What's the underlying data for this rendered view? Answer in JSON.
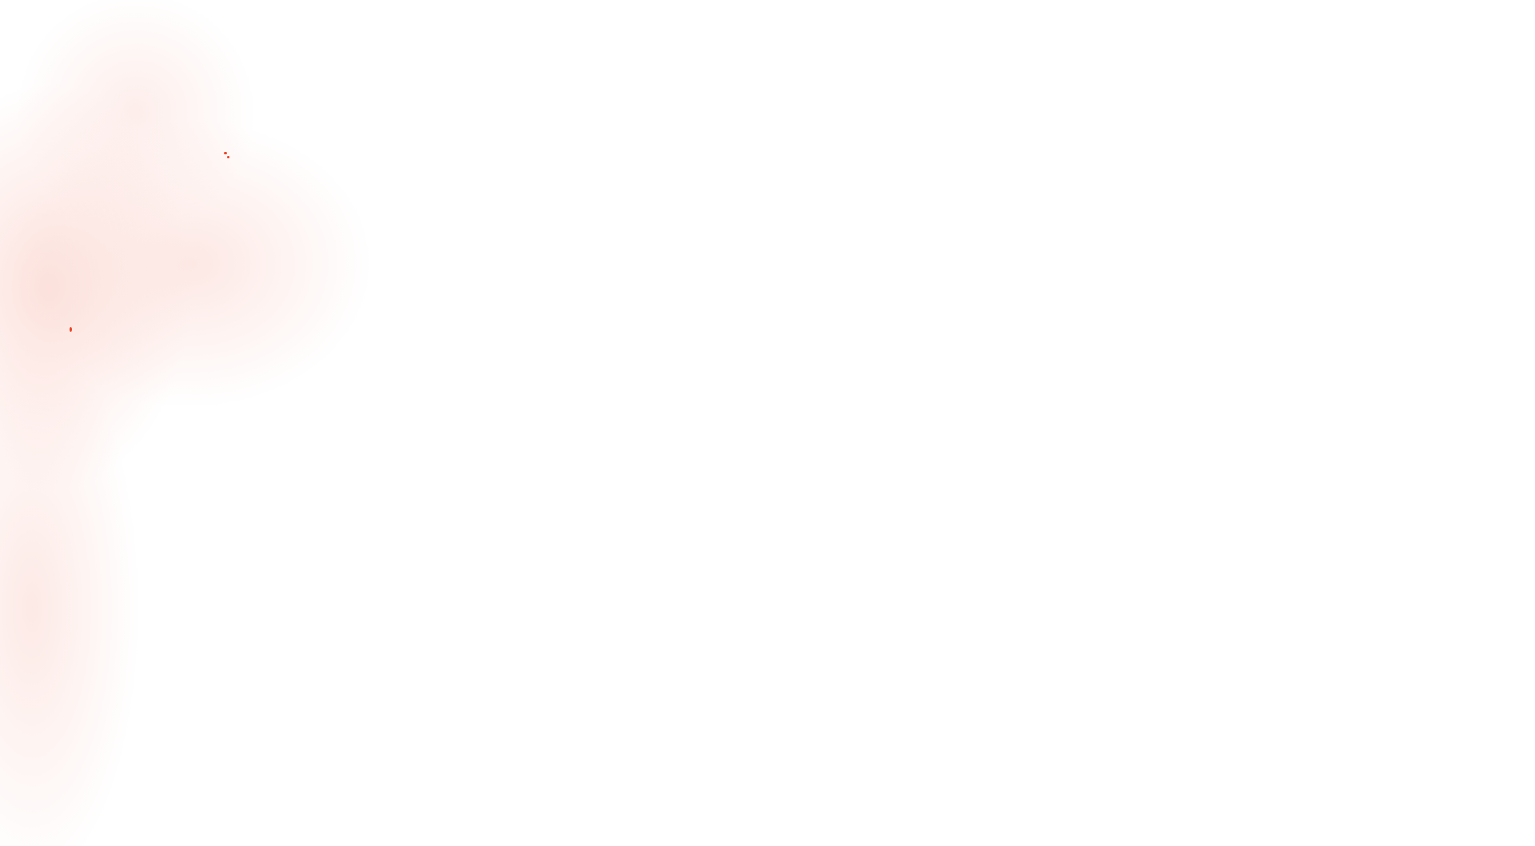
{
  "background": {
    "base_color": "#ffffff",
    "wash_color": "#fde4e0",
    "speck_color": "#f0401f"
  }
}
